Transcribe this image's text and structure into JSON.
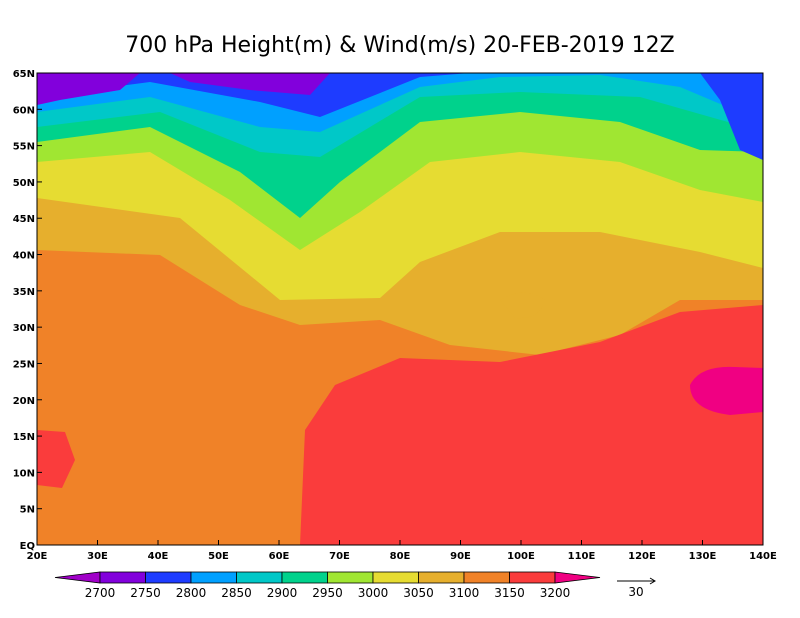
{
  "title": "700 hPa Height(m) & Wind(m/s) 20-FEB-2019 12Z",
  "x_axis_labels": [
    "20E",
    "30E",
    "40E",
    "50E",
    "60E",
    "70E",
    "80E",
    "90E",
    "100E",
    "110E",
    "120E",
    "130E",
    "140E"
  ],
  "y_axis_labels": [
    "EQ",
    "5N",
    "10N",
    "15N",
    "20N",
    "25N",
    "30N",
    "35N",
    "40N",
    "45N",
    "50N",
    "55N",
    "60N",
    "65N"
  ],
  "colorbar": {
    "levels": [
      2700,
      2750,
      2800,
      2850,
      2900,
      2950,
      3000,
      3050,
      3100,
      3150,
      3200
    ],
    "colors": [
      "#a000c8",
      "#8200dc",
      "#1e3cff",
      "#00a0ff",
      "#00c8c8",
      "#00d28c",
      "#a0e632",
      "#e6dc32",
      "#e6af2d",
      "#f08228",
      "#fa3c3c",
      "#f00082"
    ]
  },
  "reference_vector": {
    "label": 30
  }
}
